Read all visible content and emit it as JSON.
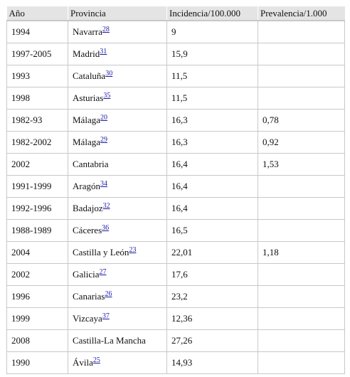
{
  "table": {
    "headers": [
      "Año",
      "Provincia",
      "Incidencia/100.000",
      "Prevalencia/1.000"
    ],
    "rows": [
      {
        "year": "1994",
        "province": "Navarra",
        "ref": "28",
        "incidence": "9",
        "prevalence": ""
      },
      {
        "year": "1997-2005",
        "province": "Madrid",
        "ref": "31",
        "incidence": "15,9",
        "prevalence": ""
      },
      {
        "year": "1993",
        "province": "Cataluña",
        "ref": "30",
        "incidence": "11,5",
        "prevalence": ""
      },
      {
        "year": "1998",
        "province": "Asturias",
        "ref": "35",
        "incidence": "11,5",
        "prevalence": ""
      },
      {
        "year": "1982-93",
        "province": "Málaga",
        "ref": "20",
        "incidence": "16,3",
        "prevalence": "0,78"
      },
      {
        "year": "1982-2002",
        "province": "Málaga",
        "ref": "29",
        "incidence": "16,3",
        "prevalence": "0,92"
      },
      {
        "year": "2002",
        "province": "Cantabria",
        "ref": "",
        "incidence": "16,4",
        "prevalence": "1,53"
      },
      {
        "year": "1991-1999",
        "province": "Aragón",
        "ref": "34",
        "incidence": "16,4",
        "prevalence": ""
      },
      {
        "year": "1992-1996",
        "province": "Badajoz",
        "ref": "32",
        "incidence": "16,4",
        "prevalence": ""
      },
      {
        "year": "1988-1989",
        "province": "Cáceres",
        "ref": "36",
        "incidence": "16,5",
        "prevalence": ""
      },
      {
        "year": "2004",
        "province": "Castilla y León",
        "ref": "23",
        "incidence": "22,01",
        "prevalence": "1,18"
      },
      {
        "year": "2002",
        "province": "Galicia",
        "ref": "27",
        "incidence": "17,6",
        "prevalence": ""
      },
      {
        "year": "1996",
        "province": "Canarias",
        "ref": "26",
        "incidence": "23,2",
        "prevalence": ""
      },
      {
        "year": "1999",
        "province": "Vizcaya",
        "ref": "37",
        "incidence": "12,36",
        "prevalence": ""
      },
      {
        "year": "2008",
        "province": "Castilla-La Mancha",
        "ref": "",
        "incidence": "27,26",
        "prevalence": ""
      },
      {
        "year": "1990",
        "province": "Ávila",
        "ref": "25",
        "incidence": "14,93",
        "prevalence": ""
      }
    ]
  }
}
